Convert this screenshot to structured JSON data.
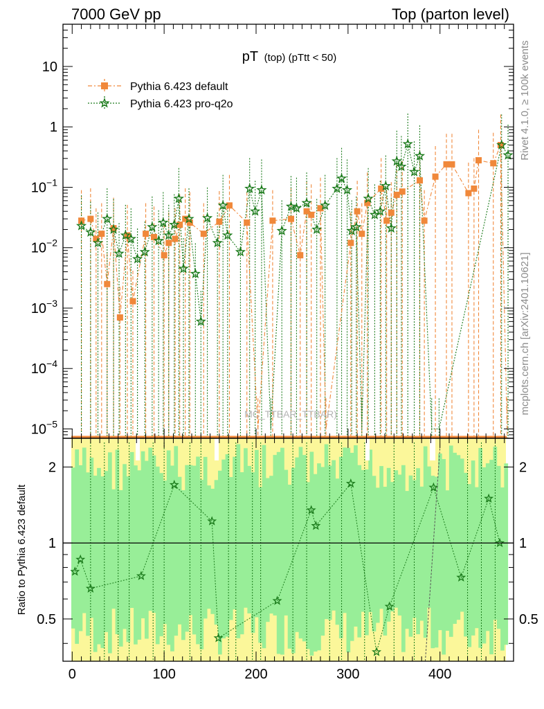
{
  "header": {
    "left": "7000 GeV pp",
    "right": "Top (parton level)"
  },
  "side_labels": {
    "rivet": "Rivet 4.1.0, ≥ 100k events",
    "mcplots": "mcplots.cern.ch [arXiv:2401.10621]"
  },
  "watermark": "MC_TTBAR_TTBAR)",
  "colors": {
    "default": "#f0883a",
    "proq2o": "#1a7a1a",
    "band_green": "#98ee98",
    "band_yellow": "#fbf79a"
  },
  "chart_data": [
    {
      "type": "line",
      "title": "pT (top) (pTtt < 50)",
      "title_main": "pT",
      "title_sub": "(top) (pTtt < 50)",
      "xlabel": "",
      "ylabel": "",
      "yscale": "log",
      "ylim": [
        7e-06,
        50
      ],
      "xlim": [
        -10,
        480
      ],
      "yticks": [
        {
          "v": 10,
          "label": "10"
        },
        {
          "v": 1,
          "label": "1"
        },
        {
          "v": 0.1,
          "label": "10−1"
        },
        {
          "v": 0.01,
          "label": "10−2"
        },
        {
          "v": 0.001,
          "label": "10−3"
        },
        {
          "v": 0.0001,
          "label": "10−4"
        },
        {
          "v": 1e-05,
          "label": "10−5"
        }
      ],
      "legend": [
        "Pythia 6.423 default",
        "Pythia 6.423 pro-q2o"
      ],
      "series": [
        {
          "name": "Pythia 6.423 default",
          "marker": "square",
          "points": [
            [
              10,
              0.028
            ],
            [
              20,
              0.03
            ],
            [
              26,
              0.014
            ],
            [
              32,
              0.017
            ],
            [
              38,
              0.0025
            ],
            [
              45,
              0.021
            ],
            [
              52,
              0.0007
            ],
            [
              60,
              0.016
            ],
            [
              66,
              0.0013
            ],
            [
              80,
              0.017
            ],
            [
              89,
              0.015
            ],
            [
              100,
              0.0075
            ],
            [
              105,
              0.012
            ],
            [
              112,
              0.014
            ],
            [
              117,
              0.024
            ],
            [
              123,
              0.03
            ],
            [
              128,
              0.026
            ],
            [
              143,
              0.017
            ],
            [
              160,
              0.027
            ],
            [
              171,
              0.05
            ],
            [
              190,
              0.026
            ],
            [
              202,
              1e-05
            ],
            [
              218,
              0.028
            ],
            [
              238,
              0.03
            ],
            [
              248,
              0.0075
            ],
            [
              255,
              0.04
            ],
            [
              260,
              0.035
            ],
            [
              270,
              0.045
            ],
            [
              276,
              1e-05
            ],
            [
              303,
              0.012
            ],
            [
              310,
              0.04
            ],
            [
              315,
              0.017
            ],
            [
              321,
              0.055
            ],
            [
              336,
              0.095
            ],
            [
              342,
              0.028
            ],
            [
              347,
              0.038
            ],
            [
              353,
              0.075
            ],
            [
              359,
              0.085
            ],
            [
              378,
              0.13
            ],
            [
              383,
              0.028
            ],
            [
              395,
              0.15
            ],
            [
              407,
              0.24
            ],
            [
              413,
              0.24
            ],
            [
              431,
              0.08
            ],
            [
              437,
              0.095
            ],
            [
              442,
              0.28
            ],
            [
              458,
              0.25
            ],
            [
              466,
              0.5
            ],
            [
              473,
              1e-05
            ]
          ]
        },
        {
          "name": "Pythia 6.423 pro-q2o",
          "marker": "star",
          "points": [
            [
              10,
              0.023
            ],
            [
              20,
              0.018
            ],
            [
              28,
              0.012
            ],
            [
              38,
              0.03
            ],
            [
              45,
              0.02
            ],
            [
              51,
              0.008
            ],
            [
              58,
              0.016
            ],
            [
              64,
              0.014
            ],
            [
              71,
              0.0065
            ],
            [
              79,
              0.0085
            ],
            [
              87,
              0.022
            ],
            [
              94,
              0.013
            ],
            [
              99,
              0.026
            ],
            [
              105,
              0.016
            ],
            [
              111,
              0.024
            ],
            [
              116,
              0.065
            ],
            [
              121,
              0.0045
            ],
            [
              127,
              0.03
            ],
            [
              134,
              0.0037
            ],
            [
              140,
              0.0006
            ],
            [
              147,
              0.031
            ],
            [
              158,
              0.012
            ],
            [
              164,
              0.05
            ],
            [
              169,
              0.016
            ],
            [
              183,
              0.0085
            ],
            [
              193,
              0.095
            ],
            [
              199,
              0.04
            ],
            [
              206,
              0.09
            ],
            [
              216,
              1e-05
            ],
            [
              228,
              0.019
            ],
            [
              238,
              0.048
            ],
            [
              244,
              0.045
            ],
            [
              255,
              0.055
            ],
            [
              266,
              0.02
            ],
            [
              275,
              0.05
            ],
            [
              288,
              0.095
            ],
            [
              293,
              0.14
            ],
            [
              299,
              0.09
            ],
            [
              304,
              0.019
            ],
            [
              309,
              0.022
            ],
            [
              315,
              1e-05
            ],
            [
              322,
              0.065
            ],
            [
              329,
              0.035
            ],
            [
              335,
              0.04
            ],
            [
              341,
              0.105
            ],
            [
              347,
              0.021
            ],
            [
              353,
              0.27
            ],
            [
              358,
              0.22
            ],
            [
              365,
              0.52
            ],
            [
              372,
              0.18
            ],
            [
              378,
              0.33
            ],
            [
              391,
              1e-05
            ],
            [
              399,
              1e-05
            ],
            [
              467,
              0.5
            ],
            [
              474,
              0.34
            ]
          ]
        }
      ]
    },
    {
      "type": "area",
      "title": "ratio",
      "ylabel": "Ratio to Pythia 6.423 default",
      "xlabel": "",
      "yscale": "log",
      "ylim": [
        0.34,
        2.6
      ],
      "xlim": [
        -10,
        480
      ],
      "xticks": [
        {
          "v": 0,
          "label": "0"
        },
        {
          "v": 100,
          "label": "100"
        },
        {
          "v": 200,
          "label": "200"
        },
        {
          "v": 300,
          "label": "300"
        },
        {
          "v": 400,
          "label": "400"
        }
      ],
      "yticks": [
        {
          "v": 2,
          "label": "2"
        },
        {
          "v": 1,
          "label": "1"
        },
        {
          "v": 0.5,
          "label": "0.5"
        }
      ],
      "reference_line": 1,
      "series": [
        {
          "name": "Pythia 6.423 pro-q2o",
          "marker": "star",
          "points": [
            [
              3,
              0.77
            ],
            [
              9,
              0.86
            ],
            [
              20,
              0.66
            ],
            [
              75,
              0.74
            ],
            [
              111,
              1.7
            ],
            [
              152,
              1.22
            ],
            [
              159,
              0.42
            ],
            [
              223,
              0.59
            ],
            [
              260,
              1.35
            ],
            [
              265,
              1.17
            ],
            [
              303,
              1.72
            ],
            [
              331,
              0.37
            ],
            [
              345,
              0.56
            ],
            [
              393,
              1.66
            ],
            [
              423,
              0.73
            ],
            [
              453,
              1.5
            ],
            [
              465,
              1.0
            ]
          ]
        },
        {
          "name": "Pythia 6.423 default",
          "marker": "line",
          "points": [
            [
              384,
              0.34
            ],
            [
              400,
              2.4
            ]
          ]
        }
      ]
    }
  ]
}
